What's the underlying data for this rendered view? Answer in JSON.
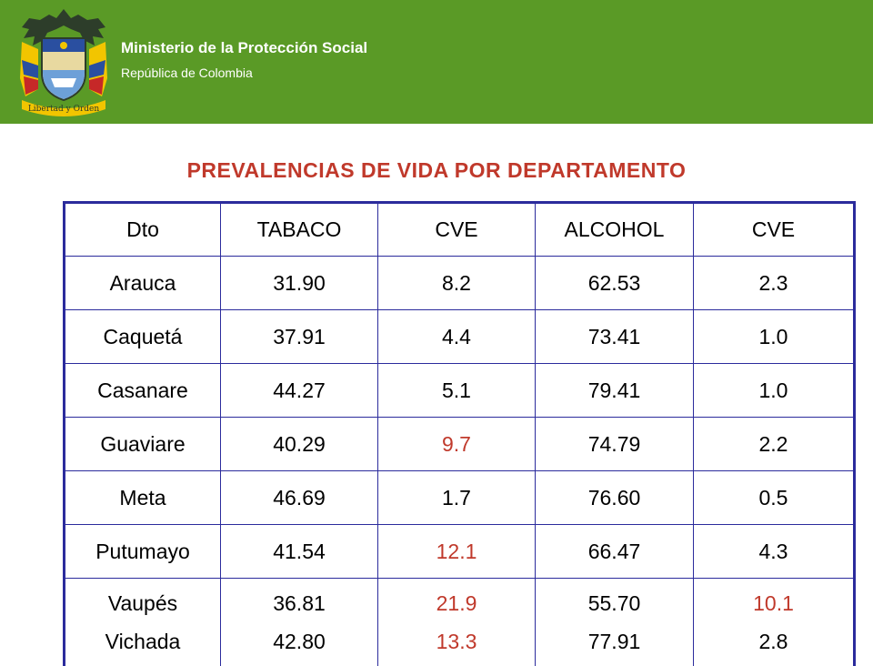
{
  "header": {
    "ministry": "Ministerio de la Protección Social",
    "republic": "República de Colombia",
    "crest_motto": "Libertad y Orden",
    "bg_color": "#5a9a26"
  },
  "title": "PREVALENCIAS DE VIDA POR DEPARTAMENTO",
  "table": {
    "headers": [
      "Dto",
      "TABACO",
      "CVE",
      "ALCOHOL",
      "CVE"
    ],
    "rows": [
      [
        "Arauca",
        "31.90",
        "8.2",
        "62.53",
        "2.3"
      ],
      [
        "Caquetá",
        "37.91",
        "4.4",
        "73.41",
        "1.0"
      ],
      [
        "Casanare",
        "44.27",
        "5.1",
        "79.41",
        "1.0"
      ],
      [
        "Guaviare",
        "40.29",
        "9.7",
        "74.79",
        "2.2"
      ],
      [
        "Meta",
        "46.69",
        "1.7",
        "76.60",
        "0.5"
      ],
      [
        "Putumayo",
        "41.54",
        "12.1",
        "66.47",
        "4.3"
      ]
    ],
    "last_row": [
      [
        "Vaupés",
        "Vichada"
      ],
      [
        "36.81",
        "42.80"
      ],
      [
        "21.9",
        "13.3"
      ],
      [
        "55.70",
        "77.91"
      ],
      [
        "10.1",
        "2.8"
      ]
    ],
    "highlight_color": "#c0392b",
    "border_color": "#2b2b9c"
  }
}
